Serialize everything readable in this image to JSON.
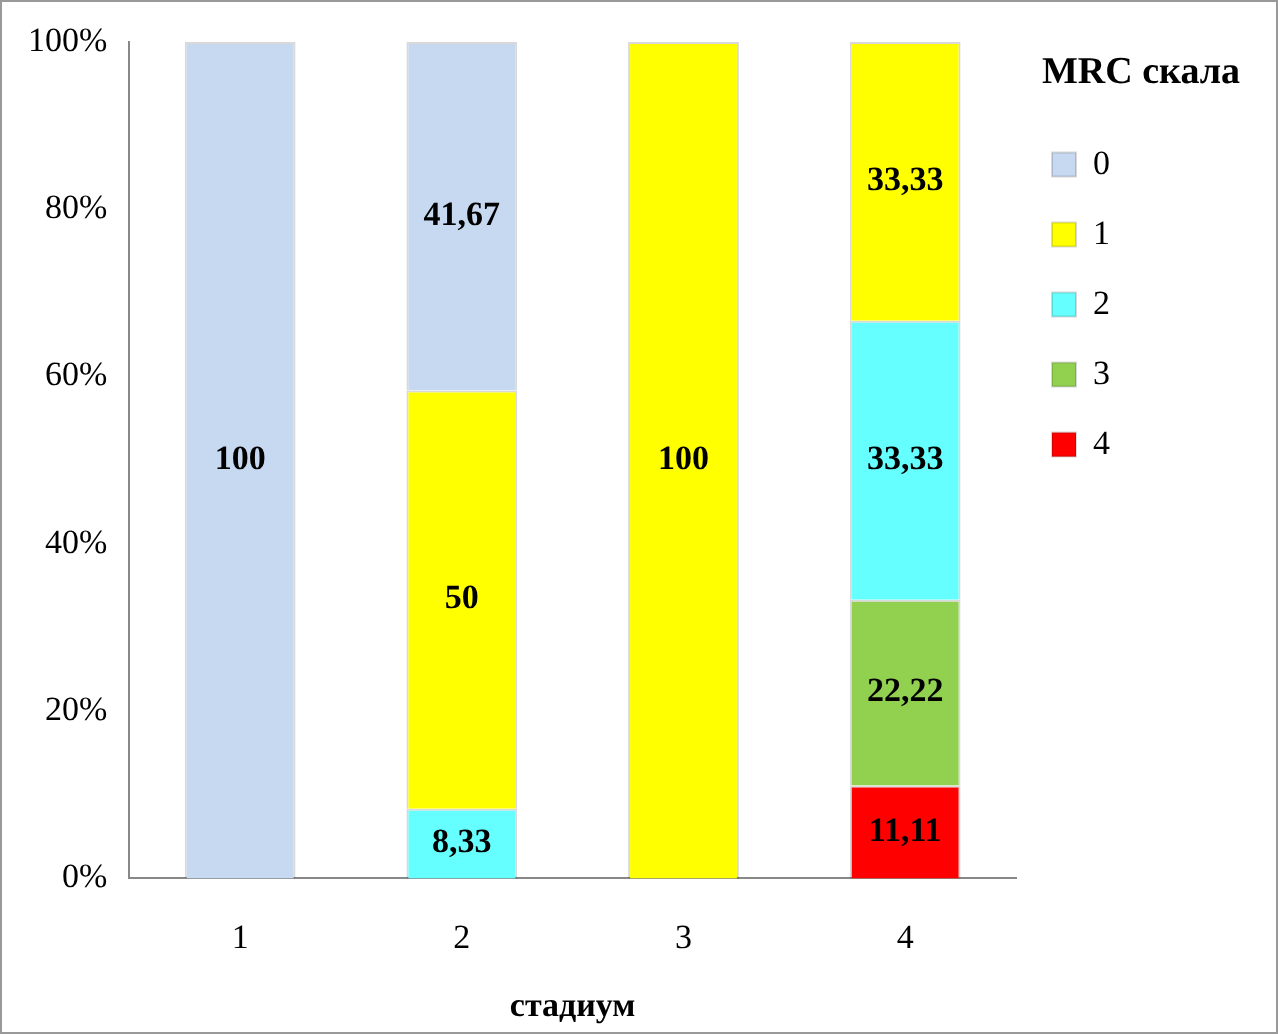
{
  "chart_data": {
    "type": "bar",
    "stacked": true,
    "xlabel": "стадиум",
    "legend_title": "MRC скала",
    "legend": "top right",
    "grid": false,
    "categories": [
      "1",
      "2",
      "3",
      "4"
    ],
    "ylim": [
      0,
      100
    ],
    "yticks": [
      {
        "value": 0,
        "label": "0%"
      },
      {
        "value": 20,
        "label": "20%"
      },
      {
        "value": 40,
        "label": "40%"
      },
      {
        "value": 60,
        "label": "60%"
      },
      {
        "value": 80,
        "label": "80%"
      },
      {
        "value": 100,
        "label": "100%"
      }
    ],
    "series": [
      {
        "name": "4",
        "color": "#ff0000",
        "values": [
          null,
          null,
          null,
          11.11
        ],
        "value_labels": [
          null,
          null,
          null,
          "11,11"
        ]
      },
      {
        "name": "3",
        "color": "#92d050",
        "values": [
          null,
          null,
          null,
          22.22
        ],
        "value_labels": [
          null,
          null,
          null,
          "22,22"
        ]
      },
      {
        "name": "2",
        "color": "#66ffff",
        "values": [
          null,
          8.33,
          null,
          33.33
        ],
        "value_labels": [
          null,
          "8,33",
          null,
          "33,33"
        ]
      },
      {
        "name": "1",
        "color": "#ffff00",
        "values": [
          null,
          50,
          100,
          33.33
        ],
        "value_labels": [
          null,
          "50",
          "100",
          "33,33"
        ]
      },
      {
        "name": "0",
        "color": "#c6d9f1",
        "values": [
          100,
          41.67,
          null,
          null
        ],
        "value_labels": [
          "100",
          "41,67",
          null,
          null
        ]
      }
    ]
  }
}
